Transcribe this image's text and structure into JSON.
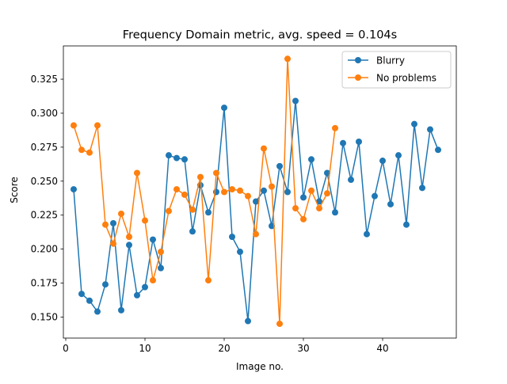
{
  "chart_data": {
    "type": "line",
    "title": "Frequency Domain metric, avg. speed = 0.104s",
    "xlabel": "Image no.",
    "ylabel": "Score",
    "xlim": [
      -0.3,
      49.3
    ],
    "ylim": [
      0.1345,
      0.3495
    ],
    "xticks": [
      0,
      10,
      20,
      30,
      40
    ],
    "yticks": [
      0.15,
      0.175,
      0.2,
      0.225,
      0.25,
      0.275,
      0.3,
      0.325
    ],
    "ytick_labels": [
      "0.150",
      "0.175",
      "0.200",
      "0.225",
      "0.250",
      "0.275",
      "0.300",
      "0.325"
    ],
    "grid": false,
    "legend_position": "top-right",
    "series": [
      {
        "name": "Blurry",
        "color": "#1f77b4",
        "marker": "circle",
        "x": [
          1,
          2,
          3,
          4,
          5,
          6,
          7,
          8,
          9,
          10,
          11,
          12,
          13,
          14,
          15,
          16,
          17,
          18,
          19,
          20,
          21,
          22,
          23,
          24,
          25,
          26,
          27,
          28,
          29,
          30,
          31,
          32,
          33,
          34,
          35,
          36,
          37,
          38,
          39,
          40,
          41,
          42,
          43,
          44,
          45,
          46,
          47
        ],
        "y": [
          0.244,
          0.167,
          0.162,
          0.154,
          0.174,
          0.219,
          0.155,
          0.203,
          0.166,
          0.172,
          0.207,
          0.186,
          0.269,
          0.267,
          0.266,
          0.213,
          0.247,
          0.227,
          0.242,
          0.304,
          0.209,
          0.198,
          0.147,
          0.235,
          0.243,
          0.217,
          0.261,
          0.242,
          0.309,
          0.238,
          0.266,
          0.235,
          0.256,
          0.227,
          0.278,
          0.251,
          0.279,
          0.211,
          0.239,
          0.265,
          0.233,
          0.269,
          0.218,
          0.292,
          0.245,
          0.288,
          0.273
        ]
      },
      {
        "name": "No problems",
        "color": "#ff7f0e",
        "marker": "circle",
        "x": [
          1,
          2,
          3,
          4,
          5,
          6,
          7,
          8,
          9,
          10,
          11,
          12,
          13,
          14,
          15,
          16,
          17,
          18,
          19,
          20,
          21,
          22,
          23,
          24,
          25,
          26,
          27,
          28,
          29,
          30,
          31,
          32,
          33,
          34
        ],
        "y": [
          0.291,
          0.273,
          0.271,
          0.291,
          0.218,
          0.204,
          0.226,
          0.209,
          0.256,
          0.221,
          0.177,
          0.198,
          0.228,
          0.244,
          0.24,
          0.229,
          0.253,
          0.177,
          0.256,
          0.242,
          0.244,
          0.243,
          0.239,
          0.211,
          0.274,
          0.246,
          0.145,
          0.34,
          0.23,
          0.222,
          0.243,
          0.23,
          0.241,
          0.289
        ]
      }
    ]
  }
}
